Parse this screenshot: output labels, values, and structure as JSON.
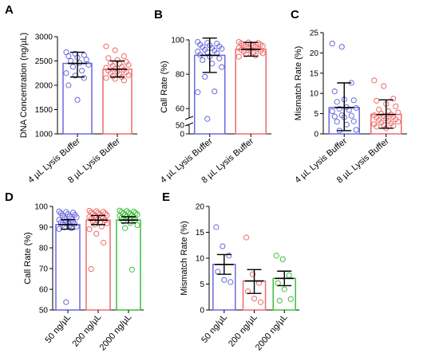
{
  "chart_data": [
    {
      "panel": "A",
      "type": "bar",
      "ylabel": "DNA Concentration (ng/µL)",
      "ylim": [
        1000,
        3000
      ],
      "yticks": [
        1000,
        1500,
        2000,
        2500,
        3000
      ],
      "categories": [
        "4 µL Lysis Buffer",
        "8 µL Lysis Buffer"
      ],
      "colors": [
        "#6a6adf",
        "#ef6b6b"
      ],
      "means": [
        2450,
        2330
      ],
      "err_lo": [
        2170,
        2170
      ],
      "err_hi": [
        2680,
        2500
      ],
      "points": [
        [
          2680,
          2650,
          2620,
          2600,
          2570,
          2530,
          2500,
          2460,
          2420,
          2380,
          2300,
          2250,
          2200,
          2150,
          2000,
          1700
        ],
        [
          2800,
          2720,
          2600,
          2560,
          2520,
          2480,
          2460,
          2440,
          2420,
          2400,
          2380,
          2360,
          2340,
          2320,
          2300,
          2280,
          2270,
          2250,
          2230,
          2210,
          2190,
          2170,
          2150,
          2130,
          2100
        ]
      ]
    },
    {
      "panel": "B",
      "type": "bar",
      "ylabel": "Call Rate (%)",
      "ylim": [
        0,
        100
      ],
      "yticks": [
        0,
        50,
        60,
        80,
        100
      ],
      "axis_break": [
        50,
        55
      ],
      "categories": [
        "4 µL Lysis Buffer",
        "8 µL Lysis Buffer"
      ],
      "colors": [
        "#6a6adf",
        "#ef6b6b"
      ],
      "means": [
        91.0,
        94.5
      ],
      "err_lo": [
        81.0,
        90.5
      ],
      "err_hi": [
        101.0,
        98.5
      ],
      "points": [
        [
          98.8,
          98.2,
          97.8,
          97.2,
          96.8,
          96.2,
          95.8,
          95.2,
          94.8,
          94.2,
          93.8,
          93.2,
          92.8,
          92.2,
          91.2,
          90.2,
          89.2,
          88.2,
          86.2,
          84.2,
          78.5,
          70.0,
          69.5,
          54.0
        ],
        [
          98.8,
          98.5,
          98.2,
          97.9,
          97.6,
          97.3,
          97.0,
          96.7,
          96.4,
          96.1,
          95.8,
          95.4,
          95.0,
          94.6,
          94.2,
          93.8,
          93.4,
          93.0,
          92.6,
          92.2,
          91.6,
          91.0,
          90.2
        ]
      ]
    },
    {
      "panel": "C",
      "type": "bar",
      "ylabel": "Mismatch Rate (%)",
      "ylim": [
        0,
        25
      ],
      "yticks": [
        0,
        5,
        10,
        15,
        20,
        25
      ],
      "categories": [
        "4 µL Lysis Buffer",
        "8 µL Lysis Buffer"
      ],
      "colors": [
        "#6a6adf",
        "#ef6b6b"
      ],
      "means": [
        6.5,
        4.8
      ],
      "err_lo": [
        0.8,
        1.4
      ],
      "err_hi": [
        12.6,
        8.4
      ],
      "points": [
        [
          22.3,
          21.5,
          12.6,
          10.5,
          8.5,
          8.3,
          7.9,
          6.6,
          6.4,
          6.2,
          5.9,
          5.6,
          4.6,
          4.5,
          4.3,
          4.1,
          3.1,
          3.0,
          2.3,
          1.0,
          0.8
        ],
        [
          13.2,
          11.8,
          8.7,
          8.2,
          7.4,
          6.8,
          6.0,
          5.6,
          5.3,
          5.0,
          4.8,
          4.6,
          4.4,
          4.2,
          4.0,
          3.8,
          3.6,
          3.4,
          3.2,
          3.0,
          2.8,
          2.6,
          2.4,
          2.2,
          2.0,
          1.8,
          1.4
        ]
      ]
    },
    {
      "panel": "D",
      "type": "bar",
      "ylabel": "Call Rate (%)",
      "ylim": [
        50,
        100
      ],
      "yticks": [
        50,
        60,
        70,
        80,
        90,
        100
      ],
      "categories": [
        "50 ng/µL",
        "200 ng/µL",
        "2000 ng/µL"
      ],
      "colors": [
        "#6a6adf",
        "#ef6b6b",
        "#3fbf3f"
      ],
      "means": [
        91.2,
        93.4,
        93.4
      ],
      "err_lo": [
        89.0,
        91.2,
        92.0
      ],
      "err_hi": [
        93.6,
        95.6,
        95.0
      ],
      "points": [
        [
          97.6,
          97.3,
          97.0,
          96.7,
          96.3,
          95.9,
          95.5,
          95.1,
          94.7,
          94.3,
          93.9,
          93.5,
          93.1,
          92.7,
          92.3,
          91.9,
          91.5,
          91.1,
          90.7,
          90.3,
          89.9,
          89.5,
          89.1,
          53.8
        ],
        [
          97.9,
          97.7,
          97.4,
          97.1,
          96.9,
          96.6,
          96.3,
          96.0,
          95.8,
          95.5,
          95.2,
          94.9,
          94.6,
          94.3,
          94.0,
          93.6,
          93.2,
          92.8,
          92.3,
          91.8,
          91.2,
          90.3,
          89.0,
          86.8,
          82.5,
          69.8
        ],
        [
          98.0,
          97.8,
          97.5,
          97.3,
          97.0,
          96.8,
          96.6,
          96.4,
          96.1,
          95.9,
          95.7,
          95.4,
          95.1,
          94.8,
          94.5,
          94.2,
          93.6,
          92.8,
          92.0,
          91.0,
          89.5,
          69.5
        ]
      ]
    },
    {
      "panel": "E",
      "type": "bar",
      "ylabel": "Mismatch Rate (%)",
      "ylim": [
        0,
        20
      ],
      "yticks": [
        0,
        5,
        10,
        15,
        20
      ],
      "categories": [
        "50 ng/µL",
        "200 ng/µL",
        "2000 ng/µL"
      ],
      "colors": [
        "#6a6adf",
        "#ef6b6b",
        "#3fbf3f"
      ],
      "means": [
        8.8,
        5.6,
        6.1
      ],
      "err_lo": [
        6.9,
        3.2,
        4.7
      ],
      "err_hi": [
        10.7,
        7.8,
        7.5
      ],
      "points": [
        [
          16.0,
          12.3,
          10.5,
          7.4,
          5.8,
          5.4
        ],
        [
          14.0,
          6.9,
          5.2,
          3.6,
          2.2,
          1.5
        ],
        [
          10.5,
          9.8,
          6.7,
          5.2,
          4.0,
          2.1,
          1.8
        ]
      ]
    }
  ]
}
